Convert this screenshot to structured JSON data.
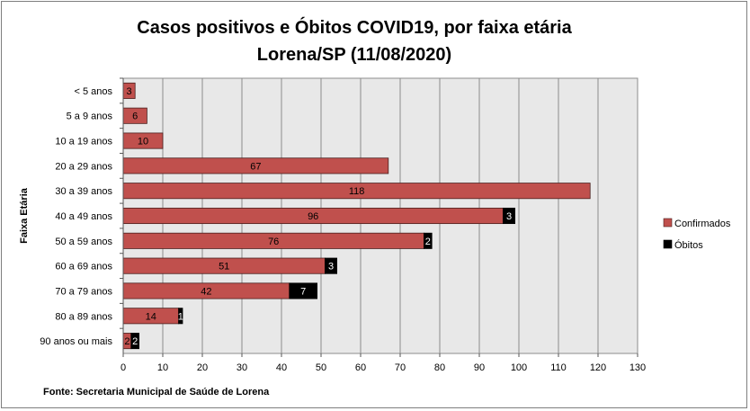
{
  "chart_data": {
    "type": "bar",
    "orientation": "horizontal",
    "stacked": true,
    "title_line1": "Casos positivos e Óbitos COVID19, por faixa etária",
    "title_line2": "Lorena/SP (11/08/2020)",
    "ylabel": "Faixa Etária",
    "xlabel": "",
    "xlim": [
      0,
      130
    ],
    "x_ticks": [
      0,
      10,
      20,
      30,
      40,
      50,
      60,
      70,
      80,
      90,
      100,
      110,
      120,
      130
    ],
    "grid": true,
    "legend_position": "right",
    "categories": [
      "< 5 anos",
      "5 a 9 anos",
      "10 a 19 anos",
      "20 a 29 anos",
      "30 a 39 anos",
      "40 a 49 anos",
      "50 a 59 anos",
      "60 a 69 anos",
      "70 a 79 anos",
      "80 a 89 anos",
      "90 anos ou mais"
    ],
    "series": [
      {
        "name": "Confirmados",
        "color": "#c0504d",
        "values": [
          3,
          6,
          10,
          67,
          118,
          96,
          76,
          51,
          42,
          14,
          2
        ]
      },
      {
        "name": "Óbitos",
        "color": "#000000",
        "values": [
          null,
          null,
          null,
          null,
          null,
          3,
          2,
          3,
          7,
          1,
          2
        ]
      }
    ],
    "source": "Fonte: Secretaria Municipal  de Saúde de Lorena"
  },
  "colors": {
    "plot_background": "#e8e8e8",
    "gridline": "#8c8c8c",
    "bar_border": "#4a1f1e"
  }
}
